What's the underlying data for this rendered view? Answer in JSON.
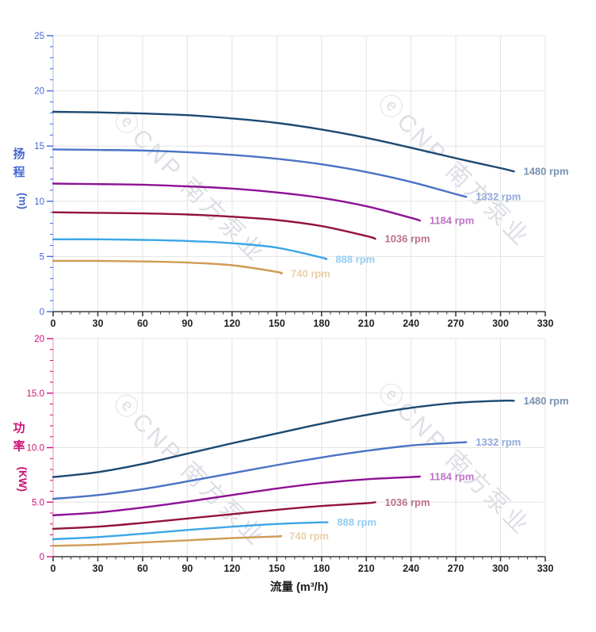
{
  "page": {
    "background": "#ffffff"
  },
  "watermark": {
    "text": "ⓔCNP 南方泵业",
    "color": "#b9bfca",
    "opacity": 0.5
  },
  "x_axis": {
    "title": "流量 (m³/h)",
    "min": 0,
    "max": 330,
    "major_step": 30,
    "minor_step": 6,
    "tick_labels": [
      "0",
      "30",
      "60",
      "90",
      "120",
      "150",
      "180",
      "210",
      "240",
      "270",
      "300",
      "330"
    ],
    "line_color": "#3c3c3c",
    "label_color": "#1f1f1f"
  },
  "grid": {
    "color": "#e3e3e3",
    "on": true
  },
  "chart_data": [
    {
      "type": "line",
      "title": "",
      "xlabel": "",
      "ylabel": "扬程 (m)",
      "ylabel_chars": [
        "扬",
        "程"
      ],
      "ylabel_unit": "(m)",
      "axis_color": "#4467d2",
      "ylim": [
        0,
        25
      ],
      "y_minor_step": 1,
      "y_ticks": [
        {
          "value": 0,
          "label": "0"
        },
        {
          "value": 5,
          "label": "5"
        },
        {
          "value": 10,
          "label": "10"
        },
        {
          "value": 15,
          "label": "15"
        },
        {
          "value": 20,
          "label": "20"
        },
        {
          "value": 25,
          "label": "25"
        }
      ],
      "legend_position": "end-of-curve",
      "series": [
        {
          "name": "1480 rpm",
          "color": "#1b4971",
          "label_color": "#7793b0",
          "points": [
            [
              0,
              18.1
            ],
            [
              30,
              18.05
            ],
            [
              60,
              17.95
            ],
            [
              90,
              17.8
            ],
            [
              120,
              17.5
            ],
            [
              150,
              17.1
            ],
            [
              180,
              16.5
            ],
            [
              210,
              15.75
            ],
            [
              240,
              14.85
            ],
            [
              270,
              13.9
            ],
            [
              300,
              13.0
            ],
            [
              309,
              12.7
            ]
          ]
        },
        {
          "name": "1332 rpm",
          "color": "#4a72c6",
          "label_color": "#92a9dc",
          "points": [
            [
              0,
              14.7
            ],
            [
              30,
              14.65
            ],
            [
              60,
              14.6
            ],
            [
              90,
              14.45
            ],
            [
              120,
              14.2
            ],
            [
              150,
              13.85
            ],
            [
              180,
              13.35
            ],
            [
              210,
              12.65
            ],
            [
              240,
              11.75
            ],
            [
              270,
              10.65
            ],
            [
              277,
              10.4
            ]
          ]
        },
        {
          "name": "1184 rpm",
          "color": "#8e1194",
          "label_color": "#bb74c4",
          "points": [
            [
              0,
              11.6
            ],
            [
              30,
              11.55
            ],
            [
              60,
              11.5
            ],
            [
              90,
              11.35
            ],
            [
              120,
              11.15
            ],
            [
              150,
              10.8
            ],
            [
              180,
              10.3
            ],
            [
              210,
              9.55
            ],
            [
              240,
              8.5
            ],
            [
              246,
              8.25
            ]
          ]
        },
        {
          "name": "1036 rpm",
          "color": "#93123a",
          "label_color": "#bb7189",
          "points": [
            [
              0,
              9.0
            ],
            [
              30,
              8.95
            ],
            [
              60,
              8.9
            ],
            [
              90,
              8.8
            ],
            [
              120,
              8.6
            ],
            [
              150,
              8.3
            ],
            [
              180,
              7.75
            ],
            [
              210,
              6.85
            ],
            [
              216,
              6.6
            ]
          ]
        },
        {
          "name": "888 rpm",
          "color": "#3ba6e6",
          "label_color": "#93cdf2",
          "points": [
            [
              0,
              6.55
            ],
            [
              30,
              6.55
            ],
            [
              60,
              6.5
            ],
            [
              90,
              6.4
            ],
            [
              120,
              6.2
            ],
            [
              150,
              5.8
            ],
            [
              180,
              4.9
            ],
            [
              183,
              4.75
            ]
          ]
        },
        {
          "name": "740 rpm",
          "color": "#d09b54",
          "label_color": "#e9cfa7",
          "points": [
            [
              0,
              4.6
            ],
            [
              30,
              4.6
            ],
            [
              60,
              4.55
            ],
            [
              90,
              4.45
            ],
            [
              120,
              4.2
            ],
            [
              150,
              3.6
            ],
            [
              153,
              3.45
            ]
          ]
        }
      ]
    },
    {
      "type": "line",
      "title": "",
      "xlabel": "流量 (m³/h)",
      "ylabel": "功率 (KW)",
      "ylabel_chars": [
        "功",
        "率"
      ],
      "ylabel_unit": "(KW)",
      "axis_color": "#cc1177",
      "ylim": [
        0,
        20
      ],
      "y_minor_step": 1,
      "y_ticks": [
        {
          "value": 0,
          "label": "0"
        },
        {
          "value": 5,
          "label": "5.0"
        },
        {
          "value": 10,
          "label": "10.0"
        },
        {
          "value": 15,
          "label": "15.0"
        },
        {
          "value": 20,
          "label": "20"
        }
      ],
      "legend_position": "end-of-curve",
      "series": [
        {
          "name": "1480 rpm",
          "color": "#1b4971",
          "label_color": "#7793b0",
          "points": [
            [
              0,
              7.3
            ],
            [
              30,
              7.75
            ],
            [
              60,
              8.5
            ],
            [
              90,
              9.45
            ],
            [
              120,
              10.4
            ],
            [
              150,
              11.3
            ],
            [
              180,
              12.2
            ],
            [
              210,
              13.0
            ],
            [
              240,
              13.65
            ],
            [
              270,
              14.1
            ],
            [
              300,
              14.3
            ],
            [
              309,
              14.3
            ]
          ]
        },
        {
          "name": "1332 rpm",
          "color": "#4a72c6",
          "label_color": "#92a9dc",
          "points": [
            [
              0,
              5.3
            ],
            [
              30,
              5.65
            ],
            [
              60,
              6.2
            ],
            [
              90,
              6.9
            ],
            [
              120,
              7.65
            ],
            [
              150,
              8.4
            ],
            [
              180,
              9.1
            ],
            [
              210,
              9.7
            ],
            [
              240,
              10.2
            ],
            [
              270,
              10.45
            ],
            [
              277,
              10.5
            ]
          ]
        },
        {
          "name": "1184 rpm",
          "color": "#8e1194",
          "label_color": "#bb74c4",
          "points": [
            [
              0,
              3.8
            ],
            [
              30,
              4.05
            ],
            [
              60,
              4.5
            ],
            [
              90,
              5.05
            ],
            [
              120,
              5.65
            ],
            [
              150,
              6.25
            ],
            [
              180,
              6.75
            ],
            [
              210,
              7.1
            ],
            [
              240,
              7.3
            ],
            [
              246,
              7.35
            ]
          ]
        },
        {
          "name": "1036 rpm",
          "color": "#93123a",
          "label_color": "#bb7189",
          "points": [
            [
              0,
              2.55
            ],
            [
              30,
              2.75
            ],
            [
              60,
              3.1
            ],
            [
              90,
              3.5
            ],
            [
              120,
              3.9
            ],
            [
              150,
              4.3
            ],
            [
              180,
              4.65
            ],
            [
              210,
              4.9
            ],
            [
              216,
              5.0
            ]
          ]
        },
        {
          "name": "888 rpm",
          "color": "#3ba6e6",
          "label_color": "#93cdf2",
          "points": [
            [
              0,
              1.6
            ],
            [
              30,
              1.8
            ],
            [
              60,
              2.1
            ],
            [
              90,
              2.45
            ],
            [
              120,
              2.75
            ],
            [
              150,
              3.0
            ],
            [
              180,
              3.15
            ],
            [
              184,
              3.15
            ]
          ]
        },
        {
          "name": "740 rpm",
          "color": "#d09b54",
          "label_color": "#e9cfa7",
          "points": [
            [
              0,
              1.0
            ],
            [
              30,
              1.1
            ],
            [
              60,
              1.3
            ],
            [
              90,
              1.5
            ],
            [
              120,
              1.7
            ],
            [
              150,
              1.85
            ],
            [
              152,
              1.9
            ]
          ]
        }
      ]
    }
  ]
}
